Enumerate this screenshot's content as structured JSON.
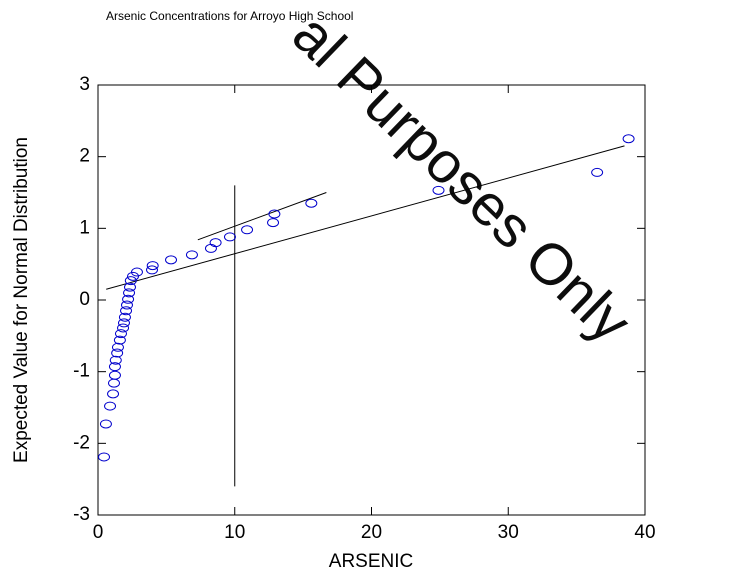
{
  "chart_data": {
    "type": "scatter",
    "title": "Arsenic Concentrations for Arroyo High School",
    "x_label": "ARSENIC",
    "y_label": "Expected Value for Normal Distribution",
    "watermark": "al Purposes Only",
    "xlim": [
      0,
      40
    ],
    "ylim": [
      -3,
      3
    ],
    "xticks": [
      0,
      10,
      20,
      30,
      40
    ],
    "yticks": [
      -3,
      -2,
      -1,
      0,
      1,
      2,
      3
    ],
    "marker_color": "#0000cc",
    "line_color": "#000000",
    "watermark_color": "#ff0000",
    "x": [
      0.44,
      0.58,
      0.88,
      1.1,
      1.17,
      1.24,
      1.24,
      1.3,
      1.4,
      1.46,
      1.6,
      1.68,
      1.83,
      1.9,
      1.97,
      2.05,
      2.12,
      2.2,
      2.27,
      2.34,
      2.4,
      2.56,
      2.85,
      3.95,
      4.0,
      5.34,
      6.87,
      8.26,
      8.6,
      9.65,
      10.9,
      12.8,
      12.9,
      15.6,
      24.9,
      36.5,
      38.8
    ],
    "y": [
      -2.19,
      -1.73,
      -1.48,
      -1.31,
      -1.16,
      -1.05,
      -0.93,
      -0.84,
      -0.74,
      -0.66,
      -0.56,
      -0.47,
      -0.39,
      -0.32,
      -0.24,
      -0.15,
      -0.07,
      0.01,
      0.1,
      0.18,
      0.27,
      0.33,
      0.39,
      0.42,
      0.48,
      0.56,
      0.63,
      0.72,
      0.8,
      0.88,
      0.98,
      1.08,
      1.2,
      1.35,
      1.53,
      1.78,
      2.25
    ],
    "lines": [
      {
        "x": [
          0.6,
          38.5
        ],
        "y": [
          0.15,
          2.15
        ]
      },
      {
        "x": [
          7.3,
          16.7
        ],
        "y": [
          0.84,
          1.5
        ]
      },
      {
        "x": [
          10,
          10
        ],
        "y": [
          1.6,
          -2.6
        ]
      }
    ]
  }
}
